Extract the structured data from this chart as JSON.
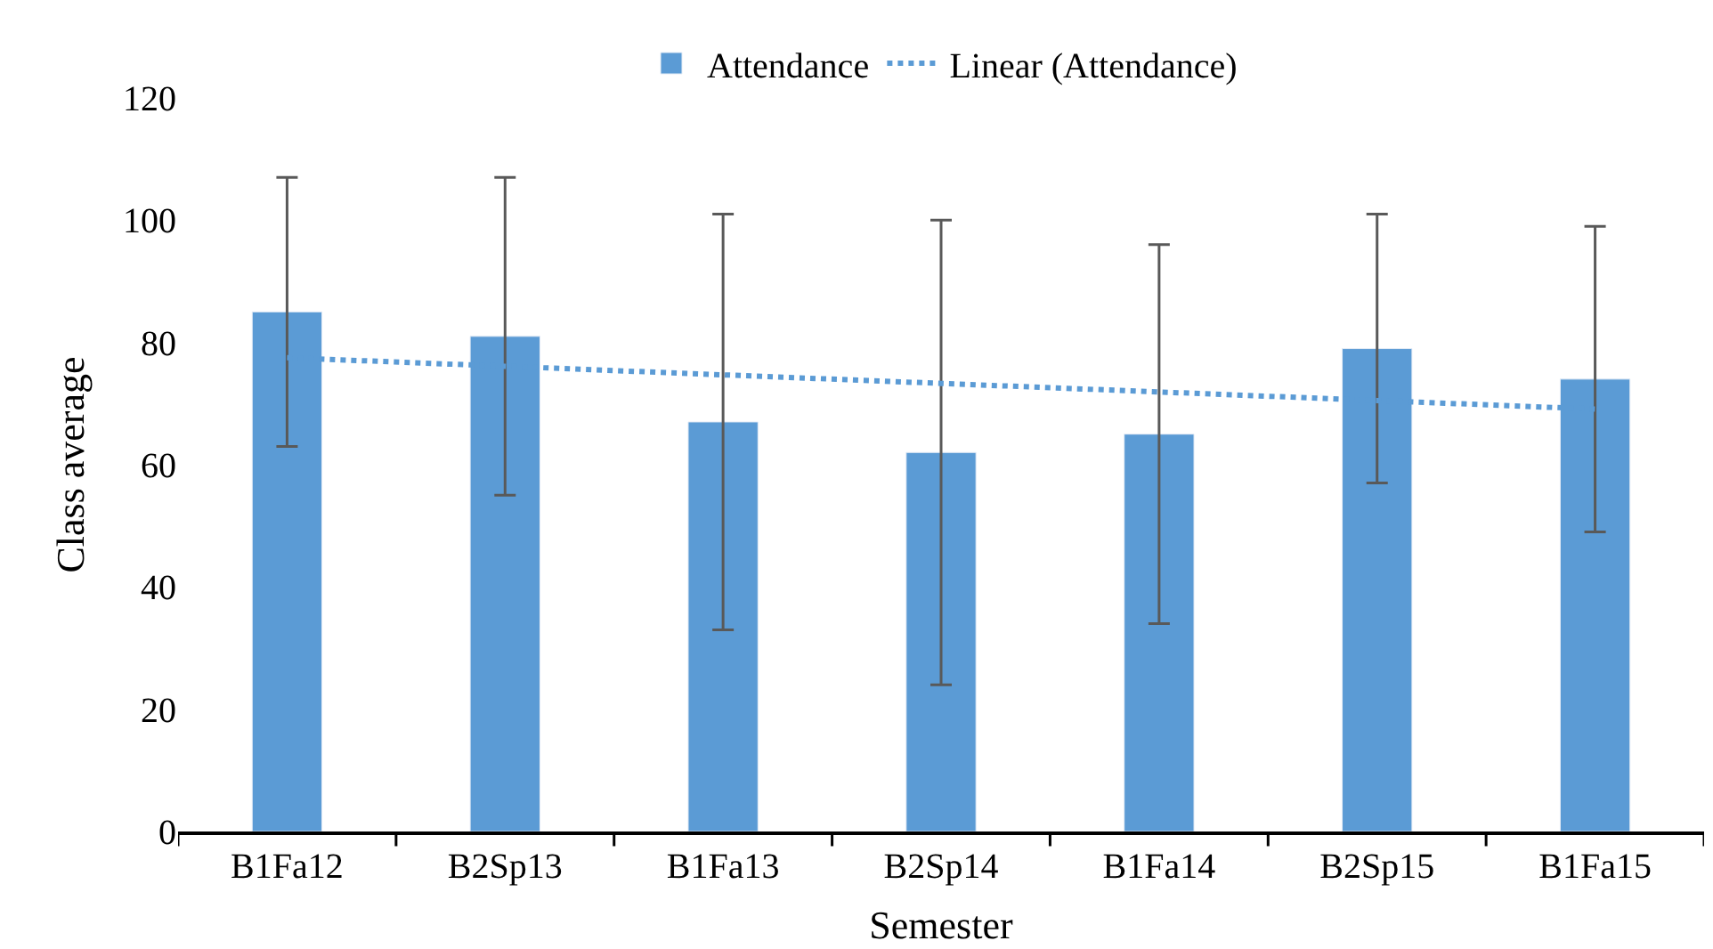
{
  "chart_data": {
    "type": "bar",
    "xlabel": "Semester",
    "ylabel": "Class average",
    "categories": [
      "B1Fa12",
      "B2Sp13",
      "B1Fa13",
      "B2Sp14",
      "B1Fa14",
      "B2Sp15",
      "B1Fa15"
    ],
    "series": [
      {
        "name": "Attendance",
        "color": "#5b9bd5",
        "values": [
          85,
          81,
          67,
          62,
          65,
          79,
          74
        ],
        "errors": [
          22,
          26,
          34,
          38,
          31,
          22,
          25
        ]
      },
      {
        "name": "Linear (Attendance)",
        "type": "line",
        "line_style": "dotted",
        "color": "#5b9bd5",
        "values": [
          77.5,
          76.1,
          74.7,
          73.3,
          71.9,
          70.5,
          69.1
        ]
      }
    ],
    "ylim": [
      0,
      120
    ],
    "yticks": [
      0,
      20,
      40,
      60,
      80,
      100,
      120
    ],
    "grid": false,
    "legend": "top",
    "marker": "none"
  }
}
